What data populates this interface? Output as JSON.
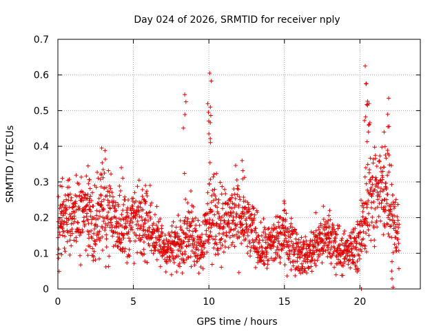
{
  "chart_data": {
    "type": "scatter",
    "title": "Day 024 of 2026, SRMTID for receiver nply",
    "xlabel": "GPS time / hours",
    "ylabel": "SRMTID / TECUs",
    "xlim": [
      0,
      24
    ],
    "ylim": [
      0,
      0.7
    ],
    "x_ticks": [
      0,
      5,
      10,
      15,
      20
    ],
    "x_tick_labels": [
      "0",
      "5",
      "10",
      "15",
      "20"
    ],
    "y_ticks": [
      0,
      0.1,
      0.2,
      0.3,
      0.4,
      0.5,
      0.6,
      0.7
    ],
    "y_tick_labels": [
      "0",
      "0.1",
      "0.2",
      "0.3",
      "0.4",
      "0.5",
      "0.6",
      "0.7"
    ],
    "grid": true,
    "marker": "+",
    "color": "#e00000",
    "series": [
      {
        "name": "SRMTID",
        "baseline": {
          "x": [
            0,
            0.5,
            1,
            1.5,
            2,
            2.5,
            3,
            3.5,
            4,
            4.5,
            5,
            5.5,
            6,
            6.5,
            7,
            7.5,
            8,
            8.5,
            9,
            9.5,
            10,
            10.5,
            11,
            11.5,
            12,
            12.5,
            13,
            13.5,
            14,
            14.5,
            15,
            15.5,
            16,
            16.5,
            17,
            17.5,
            18,
            18.5,
            19,
            19.5,
            20,
            20.5,
            21,
            21.5,
            22,
            22.5
          ],
          "y": [
            0.16,
            0.21,
            0.21,
            0.19,
            0.22,
            0.18,
            0.25,
            0.21,
            0.18,
            0.17,
            0.19,
            0.18,
            0.19,
            0.14,
            0.12,
            0.11,
            0.13,
            0.17,
            0.15,
            0.12,
            0.19,
            0.2,
            0.18,
            0.2,
            0.19,
            0.18,
            0.15,
            0.11,
            0.12,
            0.14,
            0.15,
            0.13,
            0.1,
            0.09,
            0.12,
            0.14,
            0.14,
            0.12,
            0.1,
            0.11,
            0.13,
            0.25,
            0.26,
            0.28,
            0.26,
            0.15
          ]
        },
        "peaks": [
          {
            "x": 0.3,
            "y": 0.31
          },
          {
            "x": 2.0,
            "y": 0.345
          },
          {
            "x": 2.9,
            "y": 0.395
          },
          {
            "x": 4.2,
            "y": 0.34
          },
          {
            "x": 5.8,
            "y": 0.29
          },
          {
            "x": 8.4,
            "y": 0.545
          },
          {
            "x": 10.05,
            "y": 0.605
          },
          {
            "x": 10.1,
            "y": 0.51
          },
          {
            "x": 10.0,
            "y": 0.435
          },
          {
            "x": 12.2,
            "y": 0.36
          },
          {
            "x": 15.0,
            "y": 0.24
          },
          {
            "x": 18.0,
            "y": 0.22
          },
          {
            "x": 20.35,
            "y": 0.625
          },
          {
            "x": 20.4,
            "y": 0.575
          },
          {
            "x": 20.6,
            "y": 0.52
          },
          {
            "x": 21.6,
            "y": 0.44
          },
          {
            "x": 21.9,
            "y": 0.535
          },
          {
            "x": 22.1,
            "y": 0.05
          },
          {
            "x": 20.1,
            "y": 0.0
          }
        ]
      }
    ]
  }
}
